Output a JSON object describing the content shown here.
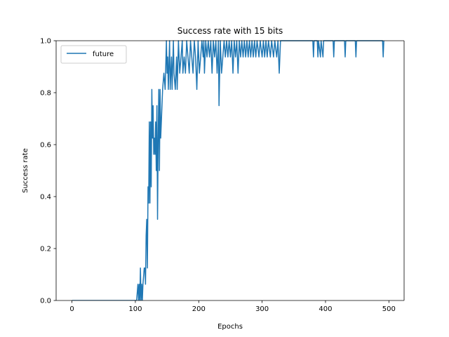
{
  "chart_data": {
    "type": "line",
    "title": "Success rate with 15 bits",
    "xlabel": "Epochs",
    "ylabel": "Success rate",
    "xlim": [
      -25,
      524
    ],
    "ylim": [
      0,
      1.0
    ],
    "xticks": [
      0,
      100,
      200,
      300,
      400,
      500
    ],
    "yticks": [
      0.0,
      0.2,
      0.4,
      0.6,
      0.8,
      1.0
    ],
    "grid": false,
    "legend_position": "upper-left",
    "colors": {
      "series": "#1f77b4"
    },
    "series": [
      {
        "name": "future",
        "points": [
          [
            0,
            0
          ],
          [
            102,
            0
          ],
          [
            104,
            0.0625
          ],
          [
            105,
            0
          ],
          [
            106,
            0.0625
          ],
          [
            107,
            0
          ],
          [
            108,
            0.125
          ],
          [
            109,
            0
          ],
          [
            110,
            0.0625
          ],
          [
            111,
            0
          ],
          [
            112,
            0.0625
          ],
          [
            114,
            0.125
          ],
          [
            115,
            0.125
          ],
          [
            116,
            0.0625
          ],
          [
            117,
            0.25
          ],
          [
            118,
            0.3125
          ],
          [
            119,
            0.125
          ],
          [
            120,
            0.4375
          ],
          [
            121,
            0.375
          ],
          [
            122,
            0.6875
          ],
          [
            123,
            0.375
          ],
          [
            124,
            0.6875
          ],
          [
            125,
            0.4375
          ],
          [
            126,
            0.8125
          ],
          [
            127,
            0.625
          ],
          [
            128,
            0.75
          ],
          [
            129,
            0.5625
          ],
          [
            130,
            0.625
          ],
          [
            131,
            0.5625
          ],
          [
            132,
            0.6875
          ],
          [
            133,
            0.5
          ],
          [
            134,
            0.75
          ],
          [
            135,
            0.3125
          ],
          [
            136,
            0.625
          ],
          [
            137,
            0.8125
          ],
          [
            138,
            0.5
          ],
          [
            139,
            0.8125
          ],
          [
            140,
            0.625
          ],
          [
            142,
            0.75
          ],
          [
            143,
            0.8125
          ],
          [
            145,
            0.875
          ],
          [
            147,
            0.8125
          ],
          [
            149,
            1.0
          ],
          [
            150,
            0.875
          ],
          [
            151,
            0.9375
          ],
          [
            152,
            0.8125
          ],
          [
            154,
            1.0
          ],
          [
            155,
            0.8125
          ],
          [
            157,
            0.9375
          ],
          [
            158,
            0.8125
          ],
          [
            160,
            1.0
          ],
          [
            161,
            0.875
          ],
          [
            163,
            0.8125
          ],
          [
            165,
            0.9375
          ],
          [
            166,
            0.8125
          ],
          [
            168,
            1.0
          ],
          [
            170,
            0.875
          ],
          [
            172,
            0.9375
          ],
          [
            174,
            1.0
          ],
          [
            175,
            0.875
          ],
          [
            177,
            0.9375
          ],
          [
            179,
            0.875
          ],
          [
            181,
            1.0
          ],
          [
            183,
            0.9375
          ],
          [
            185,
            0.875
          ],
          [
            187,
            1.0
          ],
          [
            189,
            0.9375
          ],
          [
            191,
            0.875
          ],
          [
            193,
            1.0
          ],
          [
            195,
            0.9375
          ],
          [
            197,
            0.8125
          ],
          [
            199,
            1.0
          ],
          [
            201,
            0.875
          ],
          [
            203,
            0.9375
          ],
          [
            205,
            1.0
          ],
          [
            207,
            0.9375
          ],
          [
            208,
            1.0
          ],
          [
            209,
            0.875
          ],
          [
            211,
            1.0
          ],
          [
            213,
            0.9375
          ],
          [
            215,
            1.0
          ],
          [
            217,
            0.9375
          ],
          [
            219,
            1.0
          ],
          [
            221,
            0.875
          ],
          [
            223,
            1.0
          ],
          [
            225,
            0.9375
          ],
          [
            227,
            1.0
          ],
          [
            229,
            0.875
          ],
          [
            231,
            1.0
          ],
          [
            232,
            0.75
          ],
          [
            234,
            1.0
          ],
          [
            236,
            0.875
          ],
          [
            238,
            0.9375
          ],
          [
            240,
            1.0
          ],
          [
            242,
            0.9375
          ],
          [
            244,
            1.0
          ],
          [
            246,
            0.9375
          ],
          [
            248,
            1.0
          ],
          [
            250,
            0.9375
          ],
          [
            252,
            1.0
          ],
          [
            254,
            0.875
          ],
          [
            256,
            1.0
          ],
          [
            258,
            0.9375
          ],
          [
            260,
            1.0
          ],
          [
            262,
            0.875
          ],
          [
            264,
            1.0
          ],
          [
            266,
            0.9375
          ],
          [
            268,
            1.0
          ],
          [
            270,
            0.9375
          ],
          [
            272,
            1.0
          ],
          [
            274,
            0.9375
          ],
          [
            276,
            1.0
          ],
          [
            278,
            0.9375
          ],
          [
            280,
            1.0
          ],
          [
            282,
            0.9375
          ],
          [
            284,
            1.0
          ],
          [
            286,
            0.9375
          ],
          [
            288,
            1.0
          ],
          [
            290,
            0.9375
          ],
          [
            292,
            1.0
          ],
          [
            295,
            0.9375
          ],
          [
            297,
            1.0
          ],
          [
            300,
            0.9375
          ],
          [
            302,
            1.0
          ],
          [
            304,
            0.9375
          ],
          [
            306,
            1.0
          ],
          [
            308,
            0.9375
          ],
          [
            310,
            1.0
          ],
          [
            313,
            0.9375
          ],
          [
            315,
            1.0
          ],
          [
            318,
            0.9375
          ],
          [
            320,
            1.0
          ],
          [
            323,
            0.9375
          ],
          [
            325,
            1.0
          ],
          [
            327,
            0.875
          ],
          [
            329,
            1.0
          ],
          [
            380,
            1.0
          ],
          [
            381,
            0.9375
          ],
          [
            382,
            1.0
          ],
          [
            387,
            1.0
          ],
          [
            388,
            0.9375
          ],
          [
            389,
            1.0
          ],
          [
            392,
            0.9375
          ],
          [
            393,
            1.0
          ],
          [
            396,
            0.9375
          ],
          [
            397,
            1.0
          ],
          [
            412,
            1.0
          ],
          [
            413,
            0.9375
          ],
          [
            414,
            1.0
          ],
          [
            430,
            1.0
          ],
          [
            431,
            0.9375
          ],
          [
            432,
            1.0
          ],
          [
            447,
            1.0
          ],
          [
            448,
            0.9375
          ],
          [
            449,
            1.0
          ],
          [
            490,
            1.0
          ],
          [
            491,
            0.9375
          ],
          [
            492,
            1.0
          ]
        ]
      }
    ]
  }
}
